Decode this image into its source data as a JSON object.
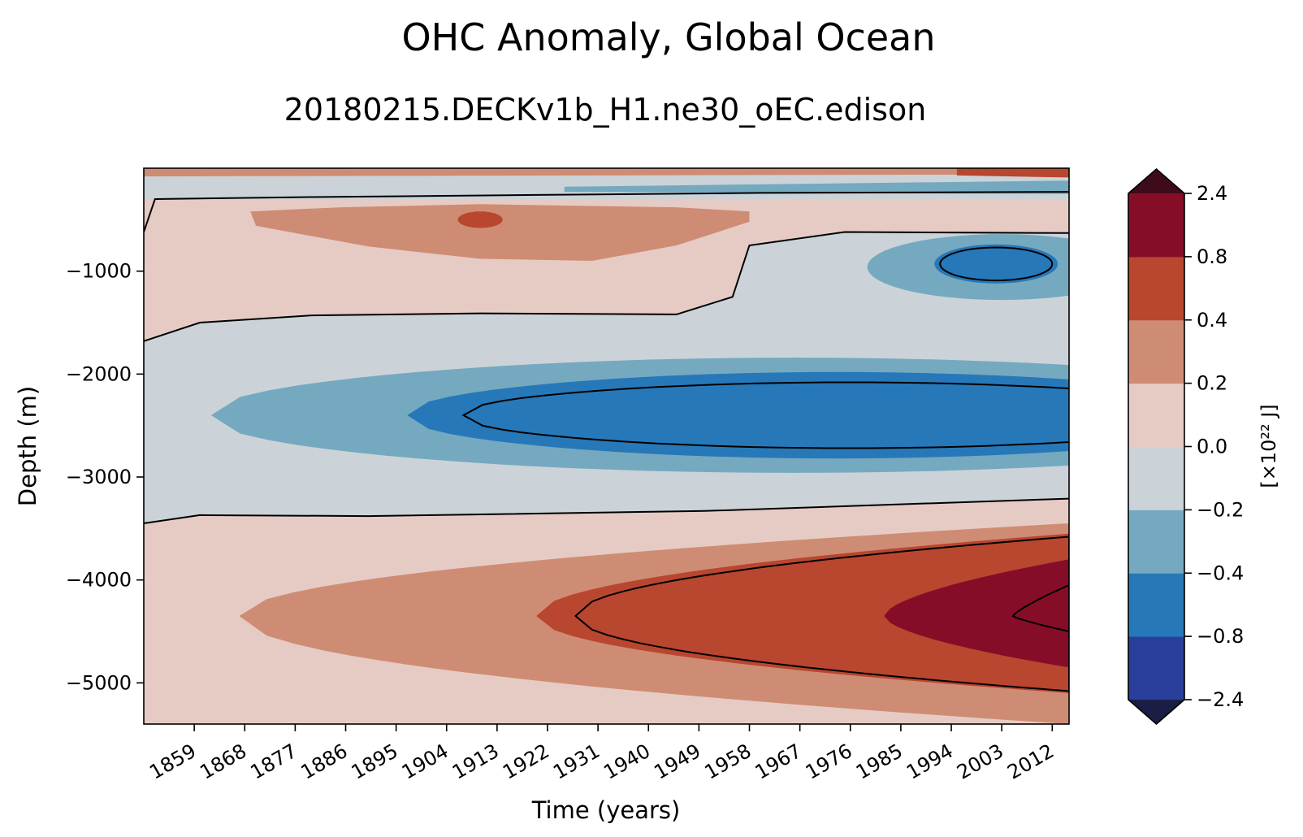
{
  "chart_data": {
    "type": "heatmap",
    "title": "OHC Anomaly, Global Ocean",
    "subtitle": "20180215.DECKv1b_H1.ne30_oEC.edison",
    "xlabel": "Time (years)",
    "ylabel": "Depth (m)",
    "colorbar_label": "[×10²² J]",
    "xlim": [
      1850,
      2015
    ],
    "ylim": [
      -5400,
      0
    ],
    "x_ticks": [
      "1859",
      "1868",
      "1877",
      "1886",
      "1895",
      "1904",
      "1913",
      "1922",
      "1931",
      "1940",
      "1949",
      "1958",
      "1967",
      "1976",
      "1985",
      "1994",
      "2003",
      "2012"
    ],
    "y_ticks": [
      -1000,
      -2000,
      -3000,
      -4000,
      -5000
    ],
    "y_tick_labels": [
      "−1000",
      "−2000",
      "−3000",
      "−4000",
      "−5000"
    ],
    "levels": [
      -2.4,
      -0.8,
      -0.4,
      -0.2,
      0.0,
      0.2,
      0.4,
      0.8,
      2.4
    ],
    "level_labels": [
      "−2.4",
      "−0.8",
      "−0.4",
      "−0.2",
      "0.0",
      "0.2",
      "0.4",
      "0.8",
      "2.4"
    ],
    "colorbar_extend": "both",
    "colors": {
      "under": "#1a1e45",
      "bins": [
        "#293f9b",
        "#2778b8",
        "#75a9c0",
        "#cbd3d8",
        "#e6cbc4",
        "#cf8c74",
        "#b9462f",
        "#860d28"
      ],
      "over": "#3e0b1a"
    },
    "features": [
      {
        "label": "surface band",
        "range": "mixed",
        "depth_m": [
          -300,
          0
        ]
      },
      {
        "label": "warm layer",
        "min_value": 0.2,
        "years": [
          1880,
          1960
        ],
        "depth_m": [
          -900,
          -300
        ]
      },
      {
        "label": "upper cool cell",
        "min_value": -0.8,
        "years": [
          1990,
          2015
        ],
        "depth_m": [
          -1250,
          -650
        ]
      },
      {
        "label": "mid-depth cooling core",
        "min_value": -0.8,
        "years": [
          1897,
          2015
        ],
        "depth_m": [
          -3000,
          -1800
        ]
      },
      {
        "label": "deep warming core",
        "max_value": 0.8,
        "years": [
          1925,
          2015
        ],
        "depth_m": [
          -5000,
          -3600
        ]
      }
    ]
  }
}
